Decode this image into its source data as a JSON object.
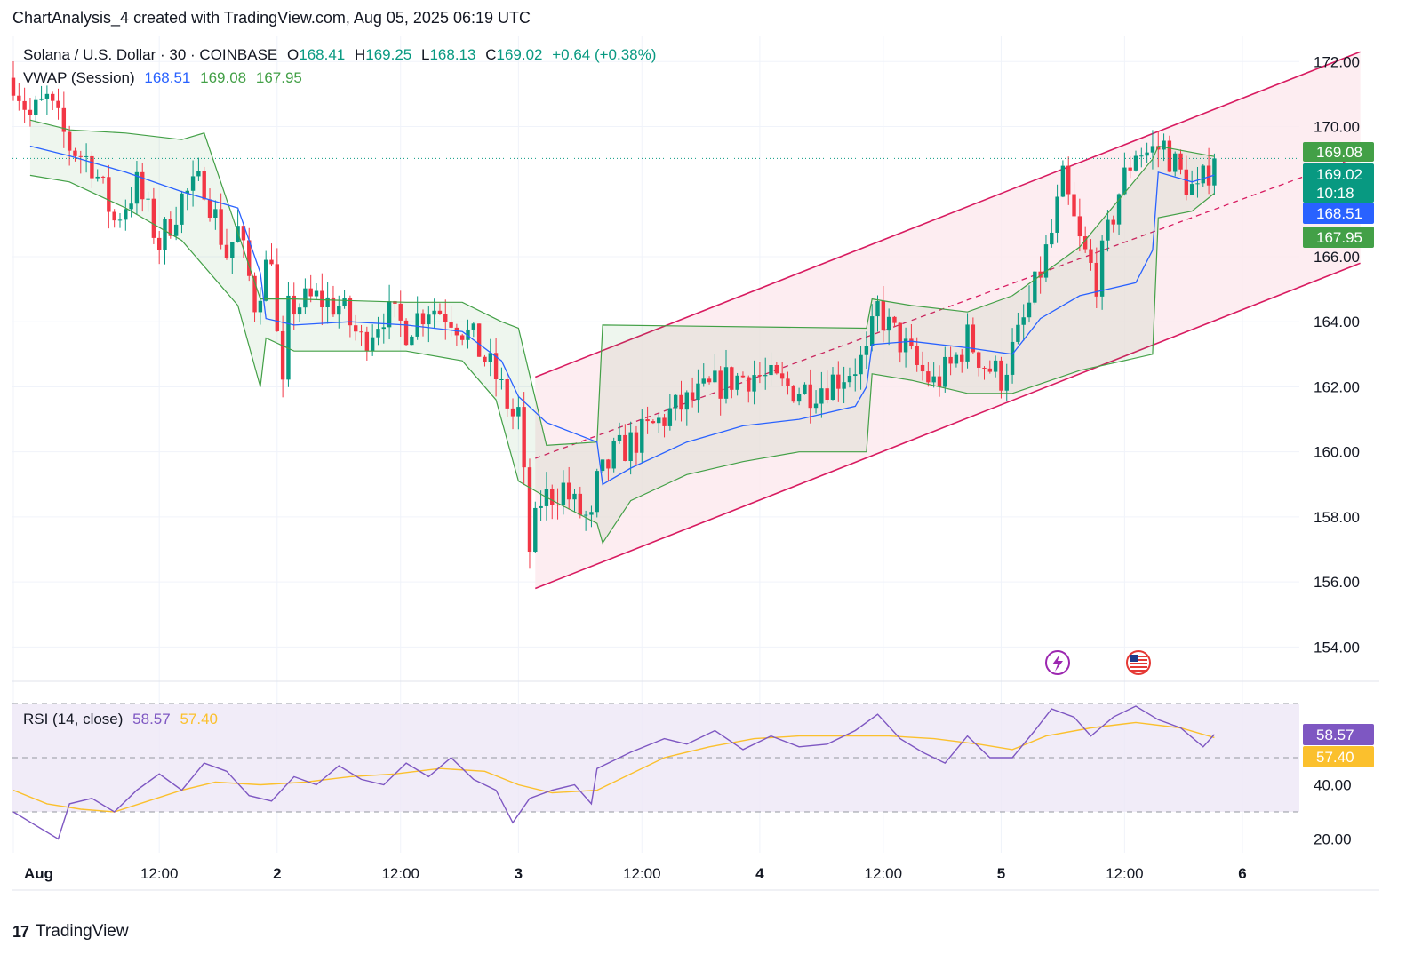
{
  "header": {
    "text": "ChartAnalysis_4 created with TradingView.com, Aug 05, 2025 06:19 UTC"
  },
  "legend": {
    "symbol": "Solana / U.S. Dollar · 30 · COINBASE",
    "o_label": "O",
    "o_value": "168.41",
    "h_label": "H",
    "h_value": "169.25",
    "l_label": "L",
    "l_value": "168.13",
    "c_label": "C",
    "c_value": "169.02",
    "change": "+0.64 (+0.38%)",
    "vwap_label": "VWAP (Session)",
    "vwap_value": "168.51",
    "vwap_upper": "169.08",
    "vwap_lower": "167.95"
  },
  "rsi_legend": {
    "label": "RSI (14, close)",
    "rsi_value": "58.57",
    "ma_value": "57.40"
  },
  "footer": {
    "brand": "TradingView",
    "logo": "17"
  },
  "colors": {
    "up": "#089981",
    "down": "#f23645",
    "vwap": "#2962ff",
    "band": "#43a047",
    "channel": "#d81b60",
    "rsi": "#7e57c2",
    "rsi_ma": "#fbc02d",
    "rsi_bg": "#ede7f6"
  },
  "icons": {
    "event1": "lightning-icon",
    "event2": "us-flag-icon"
  },
  "chart_data": {
    "type": "candlestick",
    "symbol": "Solana / U.S. Dollar",
    "interval": "30",
    "exchange": "COINBASE",
    "y_axis": {
      "min": 153,
      "max": 172.8,
      "ticks": [
        "172.00",
        "170.00",
        "166.00",
        "164.00",
        "162.00",
        "160.00",
        "158.00",
        "156.00",
        "154.00"
      ]
    },
    "x_axis": {
      "ticks": [
        "Aug",
        "12:00",
        "2",
        "12:00",
        "3",
        "12:00",
        "4",
        "12:00",
        "5",
        "12:00",
        "6"
      ]
    },
    "grid": true,
    "price_labels": {
      "vwap_upper": "169.08",
      "close": "169.02",
      "countdown": "10:18",
      "vwap": "168.51",
      "vwap_lower": "167.95"
    },
    "price_path": [
      [
        0,
        171.5
      ],
      [
        3,
        170.3
      ],
      [
        6,
        170.8
      ],
      [
        10,
        169.4
      ],
      [
        14,
        168.9
      ],
      [
        18,
        167.1
      ],
      [
        22,
        168.2
      ],
      [
        26,
        166.4
      ],
      [
        30,
        167.8
      ],
      [
        34,
        168.3
      ],
      [
        38,
        166.1
      ],
      [
        40,
        166.8
      ],
      [
        43,
        164.6
      ],
      [
        46,
        166.2
      ],
      [
        47,
        163.5
      ],
      [
        48,
        161.8
      ],
      [
        49,
        164.3
      ],
      [
        50,
        164.5
      ],
      [
        54,
        164.7
      ],
      [
        58,
        164.5
      ],
      [
        62,
        163.4
      ],
      [
        66,
        164.3
      ],
      [
        70,
        163.8
      ],
      [
        74,
        164.5
      ],
      [
        78,
        164.2
      ],
      [
        82,
        163.4
      ],
      [
        86,
        162.3
      ],
      [
        89,
        161.1
      ],
      [
        90,
        161.2
      ],
      [
        92,
        157.0
      ],
      [
        94,
        158.5
      ],
      [
        98,
        158.9
      ],
      [
        100,
        158.3
      ],
      [
        103,
        157.8
      ],
      [
        104,
        159.0
      ],
      [
        107,
        159.9
      ],
      [
        112,
        160.5
      ],
      [
        117,
        161.2
      ],
      [
        122,
        161.7
      ],
      [
        127,
        162.2
      ],
      [
        132,
        162.4
      ],
      [
        137,
        162.0
      ],
      [
        142,
        161.9
      ],
      [
        147,
        162.3
      ],
      [
        152,
        162.9
      ],
      [
        154,
        164.4
      ],
      [
        156,
        163.8
      ],
      [
        158,
        163.4
      ],
      [
        161,
        162.6
      ],
      [
        164,
        162.1
      ],
      [
        167,
        162.6
      ],
      [
        170,
        163.5
      ],
      [
        173,
        162.7
      ],
      [
        176,
        162.3
      ],
      [
        179,
        163.5
      ],
      [
        182,
        165.0
      ],
      [
        185,
        166.7
      ],
      [
        187,
        168.3
      ],
      [
        190,
        166.4
      ],
      [
        193,
        165.3
      ],
      [
        197,
        168.0
      ],
      [
        200,
        169.3
      ],
      [
        202,
        169.2
      ],
      [
        205,
        169.4
      ],
      [
        208,
        168.5
      ],
      [
        211,
        167.9
      ],
      [
        213,
        168.7
      ],
      [
        214,
        169.02
      ]
    ],
    "vwap_session_path": [
      [
        3,
        169.4
      ],
      [
        10,
        169.1
      ],
      [
        20,
        168.6
      ],
      [
        30,
        168.0
      ],
      [
        40,
        167.5
      ],
      [
        44,
        165.5
      ],
      [
        45,
        164.1
      ],
      [
        50,
        163.9
      ],
      [
        60,
        164.0
      ],
      [
        70,
        163.9
      ],
      [
        80,
        163.7
      ],
      [
        87,
        162.8
      ],
      [
        90,
        161.7
      ],
      [
        95,
        160.9
      ],
      [
        104,
        160.3
      ],
      [
        105,
        159.0
      ],
      [
        110,
        159.5
      ],
      [
        120,
        160.3
      ],
      [
        130,
        160.8
      ],
      [
        140,
        161.0
      ],
      [
        150,
        161.4
      ],
      [
        152,
        162.0
      ],
      [
        153,
        163.3
      ],
      [
        160,
        163.4
      ],
      [
        170,
        163.2
      ],
      [
        178,
        163.0
      ],
      [
        183,
        164.1
      ],
      [
        190,
        164.8
      ],
      [
        200,
        165.2
      ],
      [
        203,
        166.2
      ],
      [
        204,
        168.6
      ],
      [
        210,
        168.3
      ],
      [
        214,
        168.51
      ]
    ],
    "vwap_upper_path": [
      [
        3,
        170.2
      ],
      [
        10,
        169.9
      ],
      [
        20,
        169.8
      ],
      [
        30,
        169.6
      ],
      [
        34,
        169.8
      ],
      [
        44,
        164.7
      ],
      [
        50,
        164.7
      ],
      [
        70,
        164.6
      ],
      [
        80,
        164.6
      ],
      [
        87,
        164.0
      ],
      [
        90,
        163.8
      ],
      [
        95,
        160.2
      ],
      [
        104,
        160.3
      ],
      [
        105,
        163.9
      ],
      [
        152,
        163.8
      ],
      [
        153,
        164.7
      ],
      [
        160,
        164.5
      ],
      [
        170,
        164.3
      ],
      [
        178,
        164.8
      ],
      [
        190,
        166.3
      ],
      [
        203,
        169.0
      ],
      [
        204,
        169.4
      ],
      [
        214,
        169.08
      ]
    ],
    "vwap_lower_path": [
      [
        3,
        168.5
      ],
      [
        10,
        168.3
      ],
      [
        20,
        167.5
      ],
      [
        30,
        166.5
      ],
      [
        40,
        164.5
      ],
      [
        44,
        162.0
      ],
      [
        45,
        163.5
      ],
      [
        50,
        163.1
      ],
      [
        70,
        163.1
      ],
      [
        80,
        162.8
      ],
      [
        86,
        161.6
      ],
      [
        90,
        159.1
      ],
      [
        95,
        158.6
      ],
      [
        104,
        157.8
      ],
      [
        105,
        157.2
      ],
      [
        110,
        158.5
      ],
      [
        120,
        159.3
      ],
      [
        130,
        159.7
      ],
      [
        140,
        160.0
      ],
      [
        152,
        160.0
      ],
      [
        153,
        162.4
      ],
      [
        160,
        162.2
      ],
      [
        170,
        161.8
      ],
      [
        178,
        161.8
      ],
      [
        190,
        162.5
      ],
      [
        203,
        163.0
      ],
      [
        204,
        167.2
      ],
      [
        210,
        167.4
      ],
      [
        214,
        167.95
      ]
    ],
    "ascending_channel": {
      "upper": [
        [
          93,
          162.3
        ],
        [
          240,
          172.3
        ]
      ],
      "middle": [
        [
          93,
          159.8
        ],
        [
          240,
          169.1
        ]
      ],
      "lower": [
        [
          93,
          155.8
        ],
        [
          240,
          165.8
        ]
      ]
    },
    "rsi": {
      "label": "RSI (14, close)",
      "value": 58.57,
      "ma": 57.4,
      "levels": [
        70,
        30
      ],
      "y_ticks": [
        "40.00",
        "20.00"
      ],
      "rsi_path": [
        [
          0,
          30
        ],
        [
          4,
          25
        ],
        [
          8,
          20
        ],
        [
          10,
          33
        ],
        [
          14,
          35
        ],
        [
          18,
          30
        ],
        [
          22,
          38
        ],
        [
          26,
          44
        ],
        [
          30,
          38
        ],
        [
          34,
          48
        ],
        [
          38,
          45
        ],
        [
          42,
          36
        ],
        [
          46,
          34
        ],
        [
          50,
          43
        ],
        [
          54,
          40
        ],
        [
          58,
          47
        ],
        [
          62,
          42
        ],
        [
          66,
          40
        ],
        [
          70,
          48
        ],
        [
          74,
          43
        ],
        [
          78,
          50
        ],
        [
          82,
          42
        ],
        [
          86,
          38
        ],
        [
          89,
          26
        ],
        [
          92,
          35
        ],
        [
          96,
          38
        ],
        [
          100,
          40
        ],
        [
          103,
          33
        ],
        [
          104,
          46
        ],
        [
          110,
          52
        ],
        [
          116,
          57
        ],
        [
          120,
          55
        ],
        [
          125,
          60
        ],
        [
          130,
          53
        ],
        [
          135,
          58
        ],
        [
          140,
          54
        ],
        [
          145,
          55
        ],
        [
          150,
          60
        ],
        [
          154,
          66
        ],
        [
          158,
          57
        ],
        [
          162,
          52
        ],
        [
          166,
          48
        ],
        [
          170,
          58
        ],
        [
          174,
          50
        ],
        [
          178,
          50
        ],
        [
          182,
          60
        ],
        [
          185,
          68
        ],
        [
          189,
          65
        ],
        [
          192,
          58
        ],
        [
          196,
          65
        ],
        [
          200,
          69
        ],
        [
          204,
          64
        ],
        [
          208,
          61
        ],
        [
          212,
          54
        ],
        [
          214,
          58.57
        ]
      ],
      "ma_path": [
        [
          0,
          38
        ],
        [
          6,
          33
        ],
        [
          12,
          31
        ],
        [
          18,
          30
        ],
        [
          24,
          34
        ],
        [
          30,
          38
        ],
        [
          36,
          41
        ],
        [
          44,
          40
        ],
        [
          52,
          41
        ],
        [
          60,
          43
        ],
        [
          68,
          44
        ],
        [
          76,
          46
        ],
        [
          84,
          45
        ],
        [
          90,
          40
        ],
        [
          96,
          37
        ],
        [
          104,
          38
        ],
        [
          110,
          44
        ],
        [
          116,
          50
        ],
        [
          124,
          54
        ],
        [
          132,
          57
        ],
        [
          140,
          58
        ],
        [
          148,
          58
        ],
        [
          156,
          58
        ],
        [
          164,
          57
        ],
        [
          172,
          55
        ],
        [
          178,
          53
        ],
        [
          184,
          58
        ],
        [
          192,
          61
        ],
        [
          200,
          63
        ],
        [
          208,
          61
        ],
        [
          214,
          57.4
        ]
      ]
    }
  }
}
